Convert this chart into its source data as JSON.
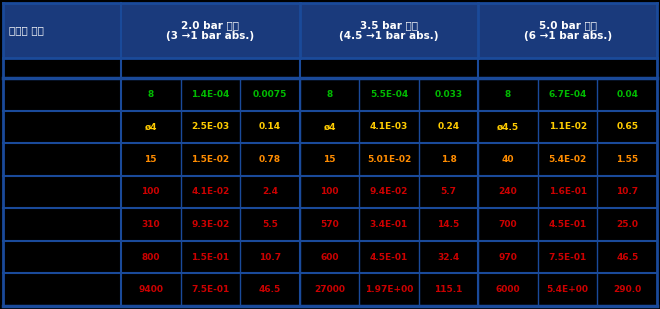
{
  "title_col": "모세관 직경",
  "headers": [
    "2.0 bar 과압\n(3 →1 bar abs.)",
    "3.5 bar 과압\n(4.5 →1 bar abs.)",
    "5.0 bar 과압\n(6 →1 bar abs.)"
  ],
  "rows": [
    {
      "vals": [
        "8",
        "1.4E-04",
        "0.0075",
        "8",
        "5.5E-04",
        "0.033",
        "8",
        "6.7E-04",
        "0.04"
      ],
      "color": "#00bb00"
    },
    {
      "vals": [
        "ø4",
        "2.5E-03",
        "0.14",
        "ø4",
        "4.1E-03",
        "0.24",
        "ø4.5",
        "1.1E-02",
        "0.65"
      ],
      "color": "#ffcc00"
    },
    {
      "vals": [
        "15",
        "1.5E-02",
        "0.78",
        "15",
        "5.01E-02",
        "1.8",
        "40",
        "5.4E-02",
        "1.55"
      ],
      "color": "#ff8c00"
    },
    {
      "vals": [
        "100",
        "4.1E-02",
        "2.4",
        "100",
        "9.4E-02",
        "5.7",
        "240",
        "1.6E-01",
        "10.7"
      ],
      "color": "#cc0000"
    },
    {
      "vals": [
        "310",
        "9.3E-02",
        "5.5",
        "570",
        "3.4E-01",
        "14.5",
        "700",
        "4.5E-01",
        "25.0"
      ],
      "color": "#cc0000"
    },
    {
      "vals": [
        "800",
        "1.5E-01",
        "10.7",
        "600",
        "4.5E-01",
        "32.4",
        "970",
        "7.5E-01",
        "46.5"
      ],
      "color": "#cc0000"
    },
    {
      "vals": [
        "9400",
        "7.5E-01",
        "46.5",
        "27000",
        "1.97E+00",
        "115.1",
        "6000",
        "5.4E+00",
        "290.0"
      ],
      "color": "#cc0000"
    }
  ],
  "bg_color": "#000000",
  "header_bg": "#1a3a7c",
  "border_color": "#1a4a9a",
  "header_text_color": "#ffffff"
}
